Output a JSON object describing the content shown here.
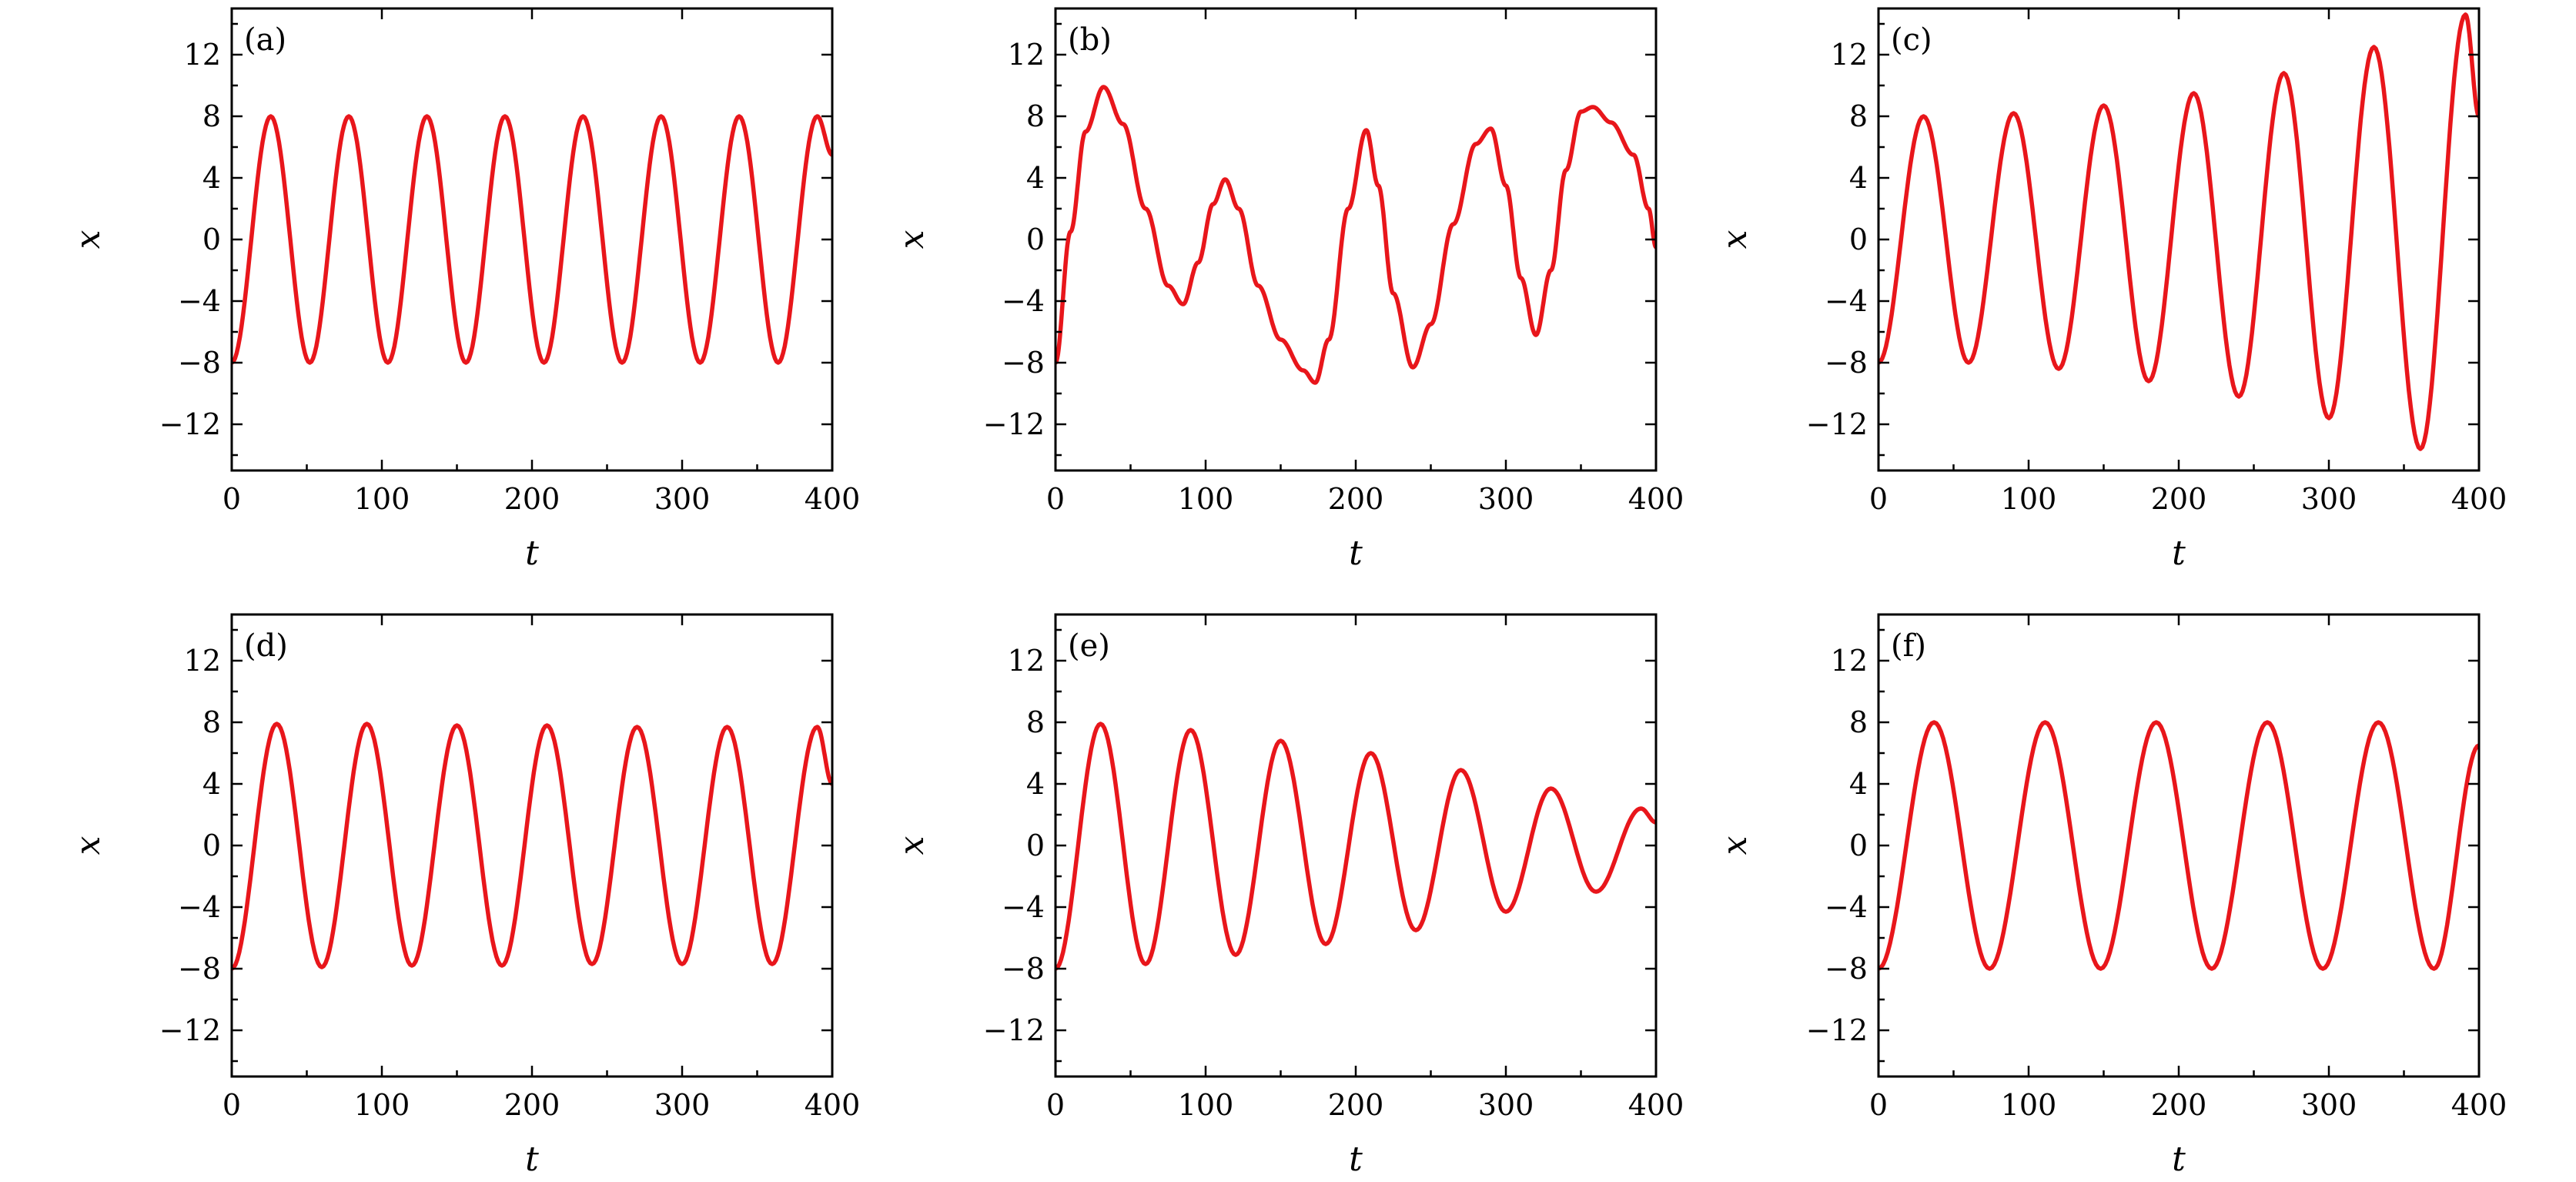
{
  "colors": {
    "series": "#e8161b",
    "axes": "#000000",
    "background": "#ffffff"
  },
  "chart_data": [
    {
      "type": "line",
      "panel_label": "(a)",
      "xlabel": "t",
      "ylabel": "x",
      "xlim": [
        0,
        400
      ],
      "ylim": [
        -15,
        15
      ],
      "xticks": [
        0,
        100,
        200,
        300,
        400
      ],
      "yticks": [
        -12,
        -8,
        -4,
        0,
        4,
        8,
        12
      ],
      "xtick_labels": [
        "0",
        "100",
        "200",
        "300",
        "400"
      ],
      "ytick_labels": [
        "−12",
        "−8",
        "−4",
        "0",
        "4",
        "8",
        "12"
      ],
      "grid": false,
      "series": [
        {
          "x": [
            0,
            26,
            52,
            78,
            104,
            130,
            156,
            182,
            208,
            234,
            260,
            286,
            312,
            338,
            364,
            390,
            400
          ],
          "y": [
            -8,
            8,
            -8,
            8,
            -8,
            8,
            -8,
            8,
            -8,
            8,
            -8,
            8,
            -8,
            8,
            -8,
            8,
            5.5
          ]
        }
      ]
    },
    {
      "type": "line",
      "panel_label": "(b)",
      "xlabel": "t",
      "ylabel": "x",
      "xlim": [
        0,
        400
      ],
      "ylim": [
        -15,
        15
      ],
      "xticks": [
        0,
        100,
        200,
        300,
        400
      ],
      "yticks": [
        -12,
        -8,
        -4,
        0,
        4,
        8,
        12
      ],
      "xtick_labels": [
        "0",
        "100",
        "200",
        "300",
        "400"
      ],
      "ytick_labels": [
        "−12",
        "−8",
        "−4",
        "0",
        "4",
        "8",
        "12"
      ],
      "grid": false,
      "series": [
        {
          "x": [
            0,
            10,
            20,
            32,
            45,
            60,
            75,
            85,
            95,
            105,
            113,
            122,
            135,
            150,
            165,
            173,
            182,
            195,
            207,
            215,
            225,
            238,
            250,
            265,
            280,
            290,
            300,
            310,
            320,
            330,
            340,
            350,
            358,
            370,
            385,
            395,
            400
          ],
          "y": [
            -8,
            0.5,
            7,
            9.9,
            7.5,
            2,
            -3,
            -4.2,
            -1.5,
            2.3,
            3.9,
            2,
            -3,
            -6.5,
            -8.5,
            -9.3,
            -6.5,
            2,
            7.1,
            3.5,
            -3.5,
            -8.3,
            -5.5,
            1,
            6.2,
            7.2,
            3.5,
            -2.5,
            -6.2,
            -2,
            4.5,
            8.3,
            8.6,
            7.6,
            5.5,
            2,
            -0.5
          ]
        }
      ]
    },
    {
      "type": "line",
      "panel_label": "(c)",
      "xlabel": "t",
      "ylabel": "x",
      "xlim": [
        0,
        400
      ],
      "ylim": [
        -15,
        15
      ],
      "xticks": [
        0,
        100,
        200,
        300,
        400
      ],
      "yticks": [
        -12,
        -8,
        -4,
        0,
        4,
        8,
        12
      ],
      "xtick_labels": [
        "0",
        "100",
        "200",
        "300",
        "400"
      ],
      "ytick_labels": [
        "−12",
        "−8",
        "−4",
        "0",
        "4",
        "8",
        "12"
      ],
      "grid": false,
      "series": [
        {
          "x": [
            0,
            30,
            60,
            90,
            120,
            150,
            180,
            210,
            240,
            270,
            300,
            330,
            361,
            391,
            400
          ],
          "y": [
            -8,
            8,
            -8,
            8.2,
            -8.4,
            8.7,
            -9.2,
            9.5,
            -10.2,
            10.8,
            -11.6,
            12.5,
            -13.6,
            14.6,
            8
          ]
        }
      ]
    },
    {
      "type": "line",
      "panel_label": "(d)",
      "xlabel": "t",
      "ylabel": "x",
      "xlim": [
        0,
        400
      ],
      "ylim": [
        -15,
        15
      ],
      "xticks": [
        0,
        100,
        200,
        300,
        400
      ],
      "yticks": [
        -12,
        -8,
        -4,
        0,
        4,
        8,
        12
      ],
      "xtick_labels": [
        "0",
        "100",
        "200",
        "300",
        "400"
      ],
      "ytick_labels": [
        "−12",
        "−8",
        "−4",
        "0",
        "4",
        "8",
        "12"
      ],
      "grid": false,
      "series": [
        {
          "x": [
            0,
            30,
            60,
            90,
            120,
            150,
            180,
            210,
            240,
            270,
            300,
            330,
            360,
            390,
            400
          ],
          "y": [
            -8,
            7.9,
            -7.9,
            7.9,
            -7.8,
            7.8,
            -7.8,
            7.8,
            -7.7,
            7.7,
            -7.7,
            7.7,
            -7.7,
            7.7,
            4
          ]
        }
      ]
    },
    {
      "type": "line",
      "panel_label": "(e)",
      "xlabel": "t",
      "ylabel": "x",
      "xlim": [
        0,
        400
      ],
      "ylim": [
        -15,
        15
      ],
      "xticks": [
        0,
        100,
        200,
        300,
        400
      ],
      "yticks": [
        -12,
        -8,
        -4,
        0,
        4,
        8,
        12
      ],
      "xtick_labels": [
        "0",
        "100",
        "200",
        "300",
        "400"
      ],
      "ytick_labels": [
        "−12",
        "−8",
        "−4",
        "0",
        "4",
        "8",
        "12"
      ],
      "grid": false,
      "series": [
        {
          "x": [
            0,
            30,
            60,
            90,
            120,
            150,
            180,
            210,
            240,
            270,
            300,
            330,
            360,
            390,
            400
          ],
          "y": [
            -8,
            7.9,
            -7.7,
            7.5,
            -7.1,
            6.8,
            -6.4,
            6,
            -5.5,
            4.9,
            -4.3,
            3.7,
            -3,
            2.4,
            1.5
          ]
        }
      ]
    },
    {
      "type": "line",
      "panel_label": "(f)",
      "xlabel": "t",
      "ylabel": "x",
      "xlim": [
        0,
        400
      ],
      "ylim": [
        -15,
        15
      ],
      "xticks": [
        0,
        100,
        200,
        300,
        400
      ],
      "yticks": [
        -12,
        -8,
        -4,
        0,
        4,
        8,
        12
      ],
      "xtick_labels": [
        "0",
        "100",
        "200",
        "300",
        "400"
      ],
      "ytick_labels": [
        "−12",
        "−8",
        "−4",
        "0",
        "4",
        "8",
        "12"
      ],
      "grid": false,
      "series": [
        {
          "x": [
            0,
            37,
            74,
            111,
            148,
            185,
            222,
            259,
            296,
            333,
            370,
            400
          ],
          "y": [
            -8,
            8,
            -8,
            8,
            -8,
            8,
            -8,
            8,
            -8,
            8,
            -8,
            6.5
          ]
        }
      ]
    }
  ]
}
